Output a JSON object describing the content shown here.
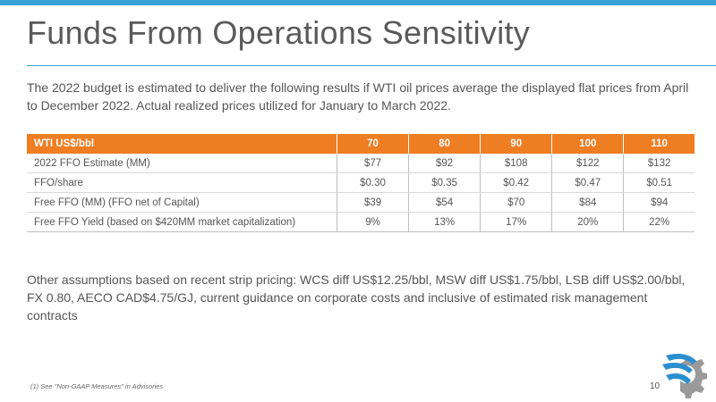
{
  "slide": {
    "title": "Funds From Operations Sensitivity",
    "intro": "The 2022 budget is estimated to deliver the following results if WTI oil prices average the displayed flat prices from April to December 2022. Actual realized prices utilized for January to March 2022.",
    "assumptions": "Other assumptions based on recent strip pricing: WCS diff US$12.25/bbl, MSW diff US$1.75/bbl, LSB diff US$2.00/bbl, FX 0.80, AECO CAD$4.75/GJ, current guidance on corporate costs and inclusive of estimated risk management contracts",
    "footnote": "(1)  See \"Non-GAAP Measures\" in Advisories",
    "page_number": "10"
  },
  "table": {
    "header": [
      "WTI US$/bbl",
      "70",
      "80",
      "90",
      "100",
      "110"
    ],
    "rows": [
      [
        "2022 FFO Estimate (MM)",
        "$77",
        "$92",
        "$108",
        "$122",
        "$132"
      ],
      [
        "FFO/share",
        "$0.30",
        "$0.35",
        "$0.42",
        "$0.47",
        "$0.51"
      ],
      [
        "Free FFO (MM) (FFO net of Capital)",
        "$39",
        "$54",
        "$70",
        "$84",
        "$94"
      ],
      [
        "Free FFO Yield (based on $420MM market capitalization)",
        "9%",
        "13%",
        "17%",
        "20%",
        "22%"
      ]
    ]
  },
  "colors": {
    "accent_blue": "#3aa0d8",
    "header_orange": "#ef7d22",
    "text_gray": "#555555",
    "logo_gray": "#9a9a9a"
  },
  "icons": {
    "logo": "gear-logo-icon"
  }
}
